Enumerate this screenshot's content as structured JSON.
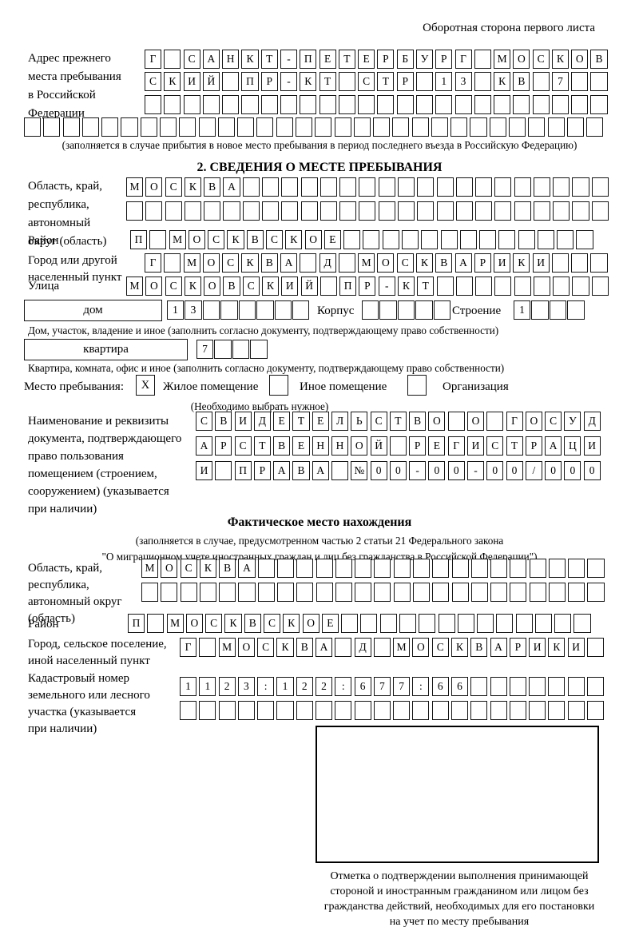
{
  "doc": {
    "corner_note": "Оборотная сторона первого листа",
    "prev_address": {
      "label_lines": [
        "Адрес прежнего",
        "места пребывания",
        "в Российской",
        "Федерации"
      ],
      "rows": {
        "r1": {
          "n": 24,
          "text": "Г САНКТ-ПЕТЕРБУРГ МОСКОВ"
        },
        "r2": {
          "n": 24,
          "text": "СКИЙ ПР-КТ СТР 13 КВ 7"
        },
        "r3": {
          "n": 24,
          "text": ""
        },
        "r4": {
          "n": 30,
          "text": ""
        }
      },
      "note": "(заполняется в случае прибытия в новое место пребывания в период последнего въезда в Российскую Федерацию)"
    },
    "section2": {
      "heading": "2. СВЕДЕНИЯ О МЕСТЕ ПРЕБЫВАНИЯ",
      "oblast": {
        "label_lines": [
          "Область, край,",
          "республика,",
          "автономный",
          "округ (область)"
        ],
        "rows": {
          "r1": {
            "n": 25,
            "text": "МОСКВА"
          },
          "r2": {
            "n": 25,
            "text": ""
          }
        }
      },
      "raion": {
        "label": "Район",
        "row": {
          "n": 24,
          "text": "П МОСКВСКОЕ"
        }
      },
      "gorod": {
        "label_lines": [
          "Город или другой",
          "населенный пункт"
        ],
        "row": {
          "n": 24,
          "text": "Г МОСКВА Д МОСКВАРИКИ"
        }
      },
      "ulitsa": {
        "label": "Улица",
        "row": {
          "n": 25,
          "text": "МОСКОВСКИЙ ПР-КТ"
        }
      },
      "dom": {
        "box_label": "дом",
        "num": {
          "n": 8,
          "text": "13"
        },
        "korpus_label": "Корпус",
        "korpus": {
          "n": 5,
          "text": ""
        },
        "stroenie_label": "Строение",
        "stroenie": {
          "n": 4,
          "text": "1"
        },
        "note": "Дом, участок, владение и иное (заполнить согласно документу, подтверждающему право собственности)"
      },
      "kvartira": {
        "box_label": "квартира",
        "num": {
          "n": 4,
          "text": "7"
        },
        "note": "Квартира, комната, офис и иное (заполнить согласно документу, подтверждающему право собственности)"
      },
      "mesto": {
        "label": "Место пребывания:",
        "options": [
          {
            "label": "Жилое помещение",
            "mark": "X"
          },
          {
            "label": "Иное помещение",
            "mark": ""
          },
          {
            "label": "Организация",
            "mark": ""
          }
        ],
        "note": "(Необходимо выбрать нужное)"
      },
      "doc_right": {
        "label_lines": [
          "Наименование и реквизиты",
          "документа, подтверждающего",
          "право пользования",
          "помещением (строением,",
          "сооружением) (указывается",
          "при наличии)"
        ],
        "rows": {
          "r1": {
            "n": 21,
            "text": "СВИДЕТЕЛЬСТВО О ГОСУД"
          },
          "r2": {
            "n": 21,
            "text": "АРСТВЕННОЙ РЕГИСТРАЦИ"
          },
          "r3": {
            "n": 21,
            "text": "И ПРАВА №00-00-00/000"
          }
        }
      }
    },
    "fact": {
      "heading": "Фактическое место нахождения",
      "note_lines": [
        "(заполняется в случае, предусмотренном частью 2 статьи 21 Федерального закона",
        "\"О миграционном учете иностранных граждан и лиц без гражданства в Российской Федерации\")"
      ],
      "oblast": {
        "label_lines": [
          "Область, край,",
          "республика,",
          "автономный округ",
          "(область)"
        ],
        "rows": {
          "r1": {
            "n": 24,
            "text": "МОСКВА"
          },
          "r2": {
            "n": 24,
            "text": ""
          }
        }
      },
      "raion": {
        "label": "Район",
        "row": {
          "n": 24,
          "text": "П МОСКВСКОЕ"
        }
      },
      "gorod": {
        "label_lines": [
          "Город, сельское поселение,",
          "иной населенный пункт"
        ],
        "row": {
          "n": 22,
          "text": "Г МОСКВА Д МОСКВАРИКИ"
        }
      },
      "kadastr": {
        "label_lines": [
          "Кадастровый номер",
          "земельного или лесного",
          "участка (указывается",
          "при наличии)"
        ],
        "rows": {
          "r1": {
            "n": 22,
            "text": "1123:122:677:66"
          },
          "r2": {
            "n": 22,
            "text": ""
          }
        }
      },
      "stamp_note_lines": [
        "Отметка о подтверждении выполнения принимающей",
        "стороной и иностранным гражданином или лицом без",
        "гражданства действий, необходимых для его постановки",
        "на учет по месту пребывания"
      ]
    }
  }
}
